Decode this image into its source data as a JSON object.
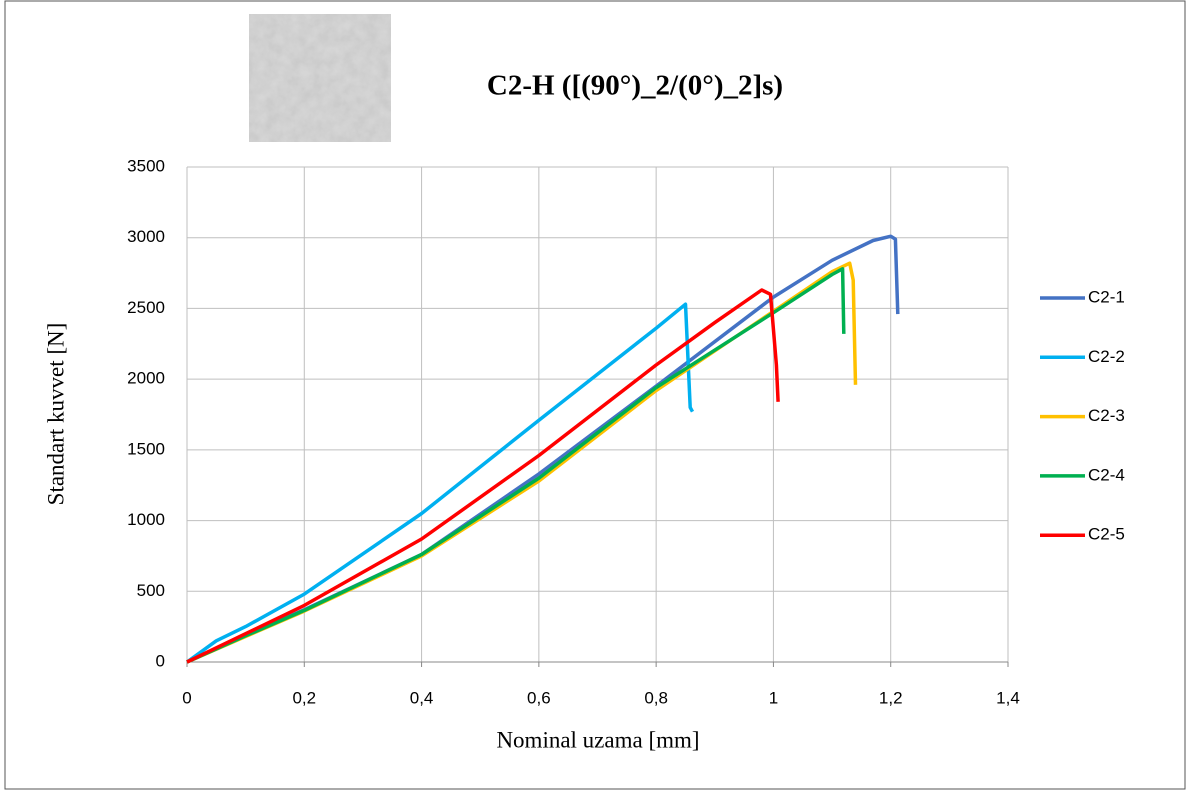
{
  "chart_data": {
    "type": "line",
    "title": "C2-H  ([(90°)_2/(0°)_2]s)",
    "x_label": "Nominal uzama [mm]",
    "y_label": "Standart kuvvet [N]",
    "xlim": [
      0,
      1.4
    ],
    "xticks": [
      0,
      {
        "value": 0.2,
        "label": "0,2"
      },
      {
        "value": 0.4,
        "label": "0,4"
      },
      {
        "value": 0.6,
        "label": "0,6"
      },
      {
        "value": 0.8,
        "label": "0,8"
      },
      1,
      {
        "value": 1.2,
        "label": "1,2"
      },
      {
        "value": 1.4,
        "label": "1,4"
      }
    ],
    "ylim": [
      0,
      3500
    ],
    "yticks": [
      0,
      500,
      1000,
      1500,
      2000,
      2500,
      3000,
      3500
    ],
    "grid": true,
    "legend": "right",
    "series": [
      {
        "name": "C2-1",
        "color": "#4472c4",
        "x": [
          0,
          0.1,
          0.2,
          0.4,
          0.6,
          0.8,
          1.0,
          1.1,
          1.17,
          1.2,
          1.208,
          1.212
        ],
        "values": [
          0,
          190,
          370,
          760,
          1330,
          1950,
          2580,
          2840,
          2980,
          3010,
          2990,
          2460
        ]
      },
      {
        "name": "C2-2",
        "color": "#00b0f0",
        "x": [
          0,
          0.05,
          0.1,
          0.2,
          0.4,
          0.6,
          0.8,
          0.85,
          0.858,
          0.862
        ],
        "values": [
          0,
          150,
          250,
          480,
          1050,
          1710,
          2360,
          2530,
          1800,
          1770
        ]
      },
      {
        "name": "C2-3",
        "color": "#ffc000",
        "x": [
          0,
          0.1,
          0.2,
          0.4,
          0.6,
          0.8,
          1.0,
          1.1,
          1.13,
          1.136,
          1.14
        ],
        "values": [
          0,
          180,
          360,
          750,
          1280,
          1920,
          2480,
          2760,
          2820,
          2700,
          1960
        ]
      },
      {
        "name": "C2-4",
        "color": "#00b050",
        "x": [
          0,
          0.1,
          0.2,
          0.4,
          0.6,
          0.8,
          1.0,
          1.1,
          1.118,
          1.12
        ],
        "values": [
          0,
          185,
          365,
          760,
          1300,
          1940,
          2470,
          2740,
          2780,
          2320
        ]
      },
      {
        "name": "C2-5",
        "color": "#ff0000",
        "x": [
          0,
          0.1,
          0.2,
          0.4,
          0.6,
          0.8,
          0.9,
          0.98,
          0.995,
          1.005,
          1.008
        ],
        "values": [
          0,
          200,
          400,
          870,
          1460,
          2100,
          2400,
          2630,
          2600,
          2100,
          1840
        ]
      }
    ]
  }
}
